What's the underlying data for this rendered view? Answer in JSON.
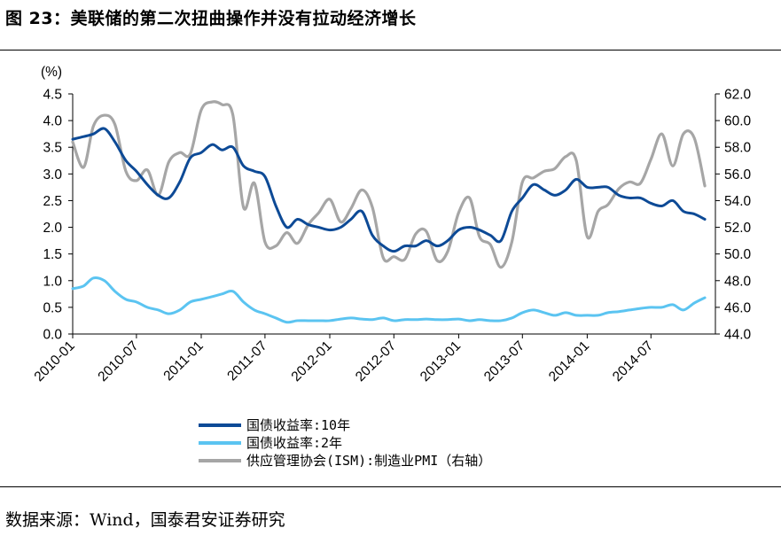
{
  "title": "图 23：美联储的第二次扭曲操作并没有拉动经济增长",
  "source": "数据来源：Wind，国泰君安证券研究",
  "chart_data": {
    "type": "line",
    "left_unit": "(%)",
    "x_range": [
      "2010-01-01",
      "2014-12-31"
    ],
    "x_ticks": [
      "2010-01",
      "2010-07",
      "2011-01",
      "2011-07",
      "2012-01",
      "2012-07",
      "2013-01",
      "2013-07",
      "2014-01",
      "2014-07"
    ],
    "y_left": {
      "min": 0.0,
      "max": 4.5,
      "ticks": [
        "0.0",
        "0.5",
        "1.0",
        "1.5",
        "2.0",
        "2.5",
        "3.0",
        "3.5",
        "4.0",
        "4.5"
      ]
    },
    "y_right": {
      "min": 44.0,
      "max": 62.0,
      "ticks": [
        "44.0",
        "46.0",
        "48.0",
        "50.0",
        "52.0",
        "54.0",
        "56.0",
        "58.0",
        "60.0",
        "62.0"
      ]
    },
    "grid": false,
    "legend_position": "bottom",
    "series": [
      {
        "name": "国债收益率:10年",
        "axis": "left",
        "color": "#0d4a96",
        "x": [
          "2010-01",
          "2010-02",
          "2010-03",
          "2010-04",
          "2010-05",
          "2010-06",
          "2010-07",
          "2010-08",
          "2010-09",
          "2010-10",
          "2010-11",
          "2010-12",
          "2011-01",
          "2011-02",
          "2011-03",
          "2011-04",
          "2011-05",
          "2011-06",
          "2011-07",
          "2011-08",
          "2011-09",
          "2011-10",
          "2011-11",
          "2011-12",
          "2012-01",
          "2012-02",
          "2012-03",
          "2012-04",
          "2012-05",
          "2012-06",
          "2012-07",
          "2012-08",
          "2012-09",
          "2012-10",
          "2012-11",
          "2012-12",
          "2013-01",
          "2013-02",
          "2013-03",
          "2013-04",
          "2013-05",
          "2013-06",
          "2013-07",
          "2013-08",
          "2013-09",
          "2013-10",
          "2013-11",
          "2013-12",
          "2014-01",
          "2014-02",
          "2014-03",
          "2014-04",
          "2014-05",
          "2014-06",
          "2014-07",
          "2014-08",
          "2014-09",
          "2014-10",
          "2014-11",
          "2014-12"
        ],
        "y": [
          3.65,
          3.7,
          3.75,
          3.85,
          3.6,
          3.25,
          3.05,
          2.8,
          2.6,
          2.55,
          2.85,
          3.3,
          3.4,
          3.55,
          3.45,
          3.5,
          3.15,
          3.05,
          2.95,
          2.4,
          2.0,
          2.15,
          2.05,
          2.0,
          1.95,
          2.0,
          2.15,
          2.3,
          1.85,
          1.65,
          1.55,
          1.65,
          1.65,
          1.75,
          1.65,
          1.75,
          1.95,
          2.0,
          1.95,
          1.85,
          1.75,
          2.3,
          2.55,
          2.8,
          2.7,
          2.6,
          2.7,
          2.9,
          2.75,
          2.75,
          2.75,
          2.6,
          2.55,
          2.55,
          2.45,
          2.4,
          2.5,
          2.3,
          2.25,
          2.15
        ]
      },
      {
        "name": "国债收益率:2年",
        "axis": "left",
        "color": "#5bc4f1",
        "x": [
          "2010-01",
          "2010-02",
          "2010-03",
          "2010-04",
          "2010-05",
          "2010-06",
          "2010-07",
          "2010-08",
          "2010-09",
          "2010-10",
          "2010-11",
          "2010-12",
          "2011-01",
          "2011-02",
          "2011-03",
          "2011-04",
          "2011-05",
          "2011-06",
          "2011-07",
          "2011-08",
          "2011-09",
          "2011-10",
          "2011-11",
          "2011-12",
          "2012-01",
          "2012-02",
          "2012-03",
          "2012-04",
          "2012-05",
          "2012-06",
          "2012-07",
          "2012-08",
          "2012-09",
          "2012-10",
          "2012-11",
          "2012-12",
          "2013-01",
          "2013-02",
          "2013-03",
          "2013-04",
          "2013-05",
          "2013-06",
          "2013-07",
          "2013-08",
          "2013-09",
          "2013-10",
          "2013-11",
          "2013-12",
          "2014-01",
          "2014-02",
          "2014-03",
          "2014-04",
          "2014-05",
          "2014-06",
          "2014-07",
          "2014-08",
          "2014-09",
          "2014-10",
          "2014-11",
          "2014-12"
        ],
        "y": [
          0.85,
          0.9,
          1.05,
          1.0,
          0.8,
          0.65,
          0.6,
          0.5,
          0.45,
          0.38,
          0.45,
          0.6,
          0.65,
          0.7,
          0.75,
          0.8,
          0.6,
          0.45,
          0.38,
          0.3,
          0.22,
          0.25,
          0.25,
          0.25,
          0.25,
          0.28,
          0.3,
          0.28,
          0.27,
          0.3,
          0.25,
          0.27,
          0.27,
          0.28,
          0.27,
          0.27,
          0.28,
          0.25,
          0.27,
          0.25,
          0.25,
          0.3,
          0.4,
          0.45,
          0.4,
          0.35,
          0.4,
          0.35,
          0.35,
          0.35,
          0.4,
          0.42,
          0.45,
          0.48,
          0.5,
          0.5,
          0.55,
          0.45,
          0.58,
          0.68
        ]
      },
      {
        "name": "供应管理协会(ISM):制造业PMI（右轴）",
        "axis": "right",
        "color": "#a6a6a6",
        "x": [
          "2010-01",
          "2010-02",
          "2010-03",
          "2010-04",
          "2010-05",
          "2010-06",
          "2010-07",
          "2010-08",
          "2010-09",
          "2010-10",
          "2010-11",
          "2010-12",
          "2011-01",
          "2011-02",
          "2011-03",
          "2011-04",
          "2011-05",
          "2011-06",
          "2011-07",
          "2011-08",
          "2011-09",
          "2011-10",
          "2011-11",
          "2011-12",
          "2012-01",
          "2012-02",
          "2012-03",
          "2012-04",
          "2012-05",
          "2012-06",
          "2012-07",
          "2012-08",
          "2012-09",
          "2012-10",
          "2012-11",
          "2012-12",
          "2013-01",
          "2013-02",
          "2013-03",
          "2013-04",
          "2013-05",
          "2013-06",
          "2013-07",
          "2013-08",
          "2013-09",
          "2013-10",
          "2013-11",
          "2013-12",
          "2014-01",
          "2014-02",
          "2014-03",
          "2014-04",
          "2014-05",
          "2014-06",
          "2014-07",
          "2014-08",
          "2014-09",
          "2014-10",
          "2014-11",
          "2014-12"
        ],
        "y": [
          58.4,
          56.5,
          59.6,
          60.4,
          59.7,
          56.2,
          55.5,
          56.3,
          54.4,
          56.9,
          57.6,
          57.5,
          60.8,
          61.4,
          61.2,
          60.4,
          53.5,
          55.3,
          50.9,
          50.6,
          51.6,
          50.8,
          52.2,
          53.1,
          54.1,
          52.4,
          53.4,
          54.8,
          53.5,
          49.7,
          49.8,
          49.6,
          51.5,
          51.7,
          49.5,
          50.2,
          53.1,
          54.2,
          51.3,
          50.7,
          49.0,
          50.9,
          55.4,
          55.7,
          56.2,
          56.4,
          57.3,
          57.0,
          51.3,
          53.2,
          53.7,
          54.9,
          55.4,
          55.3,
          57.1,
          59.0,
          56.6,
          59.0,
          58.7,
          55.1
        ]
      }
    ]
  }
}
